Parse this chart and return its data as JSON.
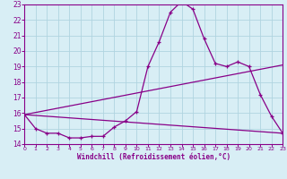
{
  "bg_color": "#d8eef5",
  "grid_color": "#b0d4e0",
  "line_color": "#880088",
  "xlabel": "Windchill (Refroidissement éolien,°C)",
  "xmin": 0,
  "xmax": 23,
  "ymin": 14,
  "ymax": 23,
  "yticks": [
    14,
    15,
    16,
    17,
    18,
    19,
    20,
    21,
    22,
    23
  ],
  "xticks": [
    0,
    1,
    2,
    3,
    4,
    5,
    6,
    7,
    8,
    9,
    10,
    11,
    12,
    13,
    14,
    15,
    16,
    17,
    18,
    19,
    20,
    21,
    22,
    23
  ],
  "line1_x": [
    0,
    1,
    2,
    3,
    4,
    5,
    6,
    7,
    8,
    9,
    10,
    11,
    12,
    13,
    14,
    15,
    16,
    17,
    18,
    19,
    20,
    21,
    22,
    23
  ],
  "line1_y": [
    15.9,
    15.0,
    14.7,
    14.7,
    14.4,
    14.4,
    14.5,
    14.5,
    15.1,
    15.5,
    16.1,
    19.0,
    20.6,
    22.5,
    23.2,
    22.7,
    20.8,
    19.2,
    19.0,
    19.3,
    19.0,
    17.2,
    15.8,
    14.7
  ],
  "line2_x": [
    0,
    23
  ],
  "line2_y": [
    15.9,
    14.7
  ],
  "line3_x": [
    0,
    23
  ],
  "line3_y": [
    15.9,
    19.1
  ],
  "spine_color": "#880088"
}
